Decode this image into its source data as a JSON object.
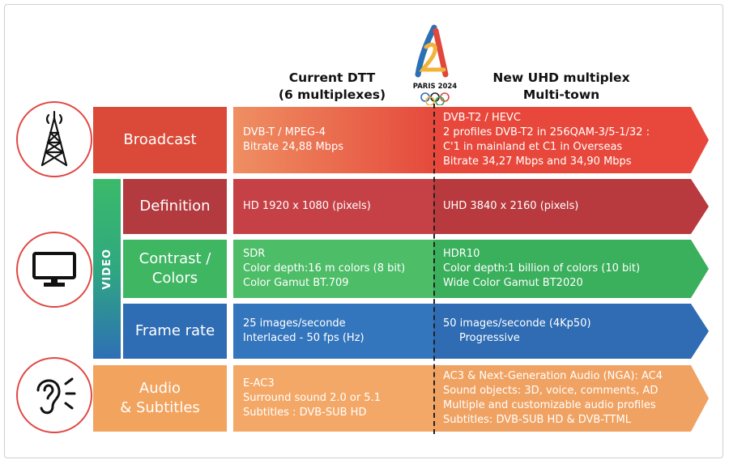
{
  "headers": {
    "current": [
      "Current DTT",
      "(6 multiplexes)"
    ],
    "new": [
      "New UHD multiplex",
      "Multi-town"
    ]
  },
  "logo": {
    "text": "PARIS 2024",
    "icon": "paris-2024-olympics-logo"
  },
  "video_label": "VIDEO",
  "rows": [
    {
      "label": [
        "Broadcast"
      ],
      "current": [
        "DVB-T / MPEG-4",
        "Bitrate 24,88 Mbps"
      ],
      "new": [
        "DVB-T2 / HEVC",
        "2 profiles DVB-T2 in 256QAM-3/5-1/32 :",
        "C'1 in mainland et C1 in Overseas",
        "Bitrate 34,27 Mbps and 34,90 Mbps"
      ],
      "colors": {
        "label": "#db4a38",
        "current_from": "#ec7f58",
        "current_to": "#e54a3c",
        "new": "#e8483b"
      }
    },
    {
      "label": [
        "Definition"
      ],
      "current": [
        "HD 1920 x 1080 (pixels)"
      ],
      "new": [
        "UHD 3840 x 2160 (pixels)"
      ],
      "colors": {
        "label": "#b33a3e",
        "current": "#c64146",
        "new": "#b83a3e"
      }
    },
    {
      "label": [
        "Contrast /",
        "Colors"
      ],
      "current": [
        "SDR",
        "Color depth:16 m colors (8 bit)",
        "Color Gamut BT.709"
      ],
      "new": [
        "HDR10",
        "Color depth:1 billion of colors (10 bit)",
        "Wide Color Gamut BT2020"
      ],
      "colors": {
        "label": "#3fb662",
        "current": "#4dbd68",
        "new": "#3aaf5c"
      }
    },
    {
      "label": [
        "Frame rate"
      ],
      "current": [
        "25 images/seconde",
        "Interlaced - 50 fps (Hz)"
      ],
      "new": [
        "50 images/seconde (4Kp50)",
        "Progressive"
      ],
      "colors": {
        "label": "#2e6cb3",
        "current": "#3476bd",
        "new": "#2f6cb3"
      }
    },
    {
      "label": [
        "Audio",
        "& Subtitles"
      ],
      "current": [
        "E-AC3",
        "Surround sound 2.0 or 5.1",
        "Subtitles : DVB-SUB HD"
      ],
      "new": [
        "AC3 & Next-Generation Audio (NGA): AC4",
        "Sound objects: 3D, voice, comments, AD",
        "Multiple and customizable audio profiles",
        "Subtitles: DVB-SUB HD & DVB-TTML"
      ],
      "colors": {
        "label": "#f2a35d",
        "current": "#f3a867",
        "new": "#f0a262"
      }
    }
  ],
  "icons": [
    "broadcast-tower-icon",
    "tv-monitor-icon",
    "ear-sound-icon"
  ]
}
